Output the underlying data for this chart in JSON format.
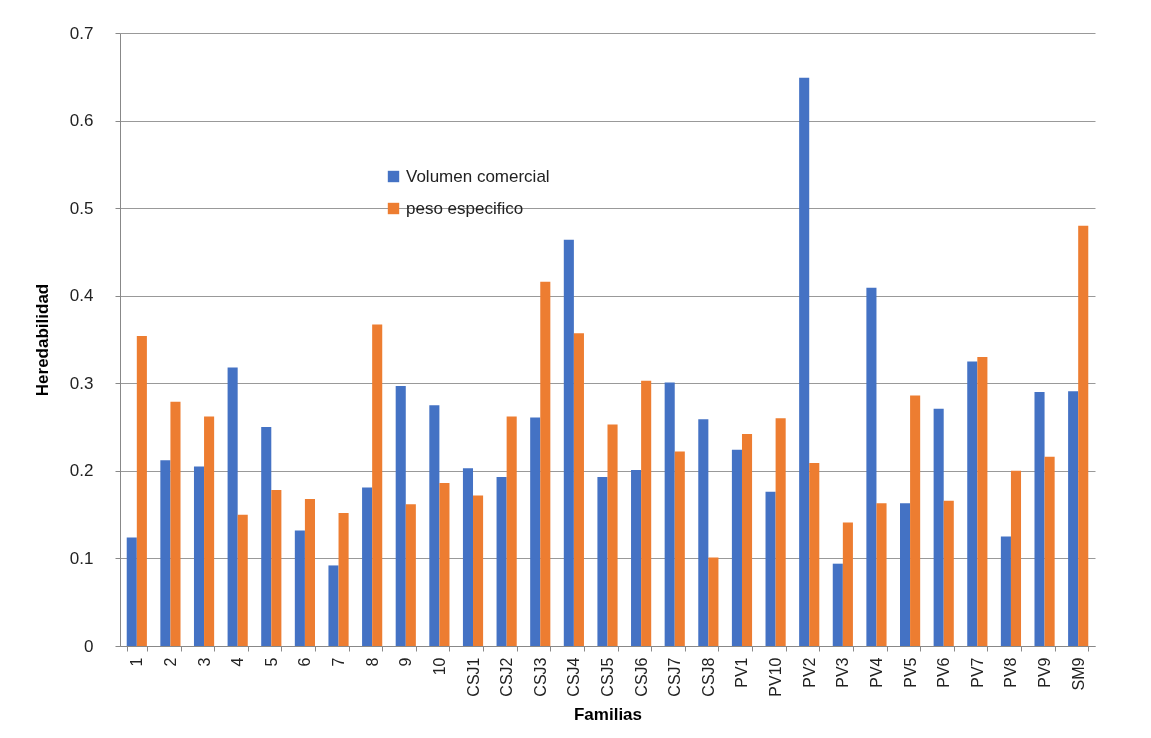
{
  "chart_data": {
    "type": "bar",
    "xlabel": "Familias",
    "ylabel": "Heredabilidad",
    "categories": [
      "1",
      "2",
      "3",
      "4",
      "5",
      "6",
      "7",
      "8",
      "9",
      "10",
      "CSJ1",
      "CSJ2",
      "CSJ3",
      "CSJ4",
      "CSJ5",
      "CSJ6",
      "CSJ7",
      "CSJ8",
      "PV1",
      "PV10",
      "PV2",
      "PV3",
      "PV4",
      "PV5",
      "PV6",
      "PV7",
      "PV8",
      "PV9",
      "SM9"
    ],
    "series": [
      {
        "name": "Volumen comercial",
        "color": "#4472c4",
        "values": [
          0.124,
          0.212,
          0.205,
          0.318,
          0.25,
          0.132,
          0.092,
          0.181,
          0.297,
          0.275,
          0.203,
          0.193,
          0.261,
          0.464,
          0.193,
          0.201,
          0.301,
          0.259,
          0.224,
          0.176,
          0.649,
          0.094,
          0.409,
          0.163,
          0.271,
          0.325,
          0.125,
          0.29,
          0.291
        ]
      },
      {
        "name": "peso especifico",
        "color": "#ed7d31",
        "values": [
          0.354,
          0.279,
          0.262,
          0.15,
          0.178,
          0.168,
          0.152,
          0.367,
          0.162,
          0.186,
          0.172,
          0.262,
          0.416,
          0.357,
          0.253,
          0.303,
          0.222,
          0.101,
          0.242,
          0.26,
          0.209,
          0.141,
          0.163,
          0.286,
          0.166,
          0.33,
          0.2,
          0.216,
          0.48
        ]
      }
    ],
    "ylim": [
      0,
      0.7
    ],
    "yticks": [
      0,
      0.1,
      0.2,
      0.3,
      0.4,
      0.5,
      0.6,
      0.7
    ],
    "grid": "y",
    "legend": "top"
  }
}
